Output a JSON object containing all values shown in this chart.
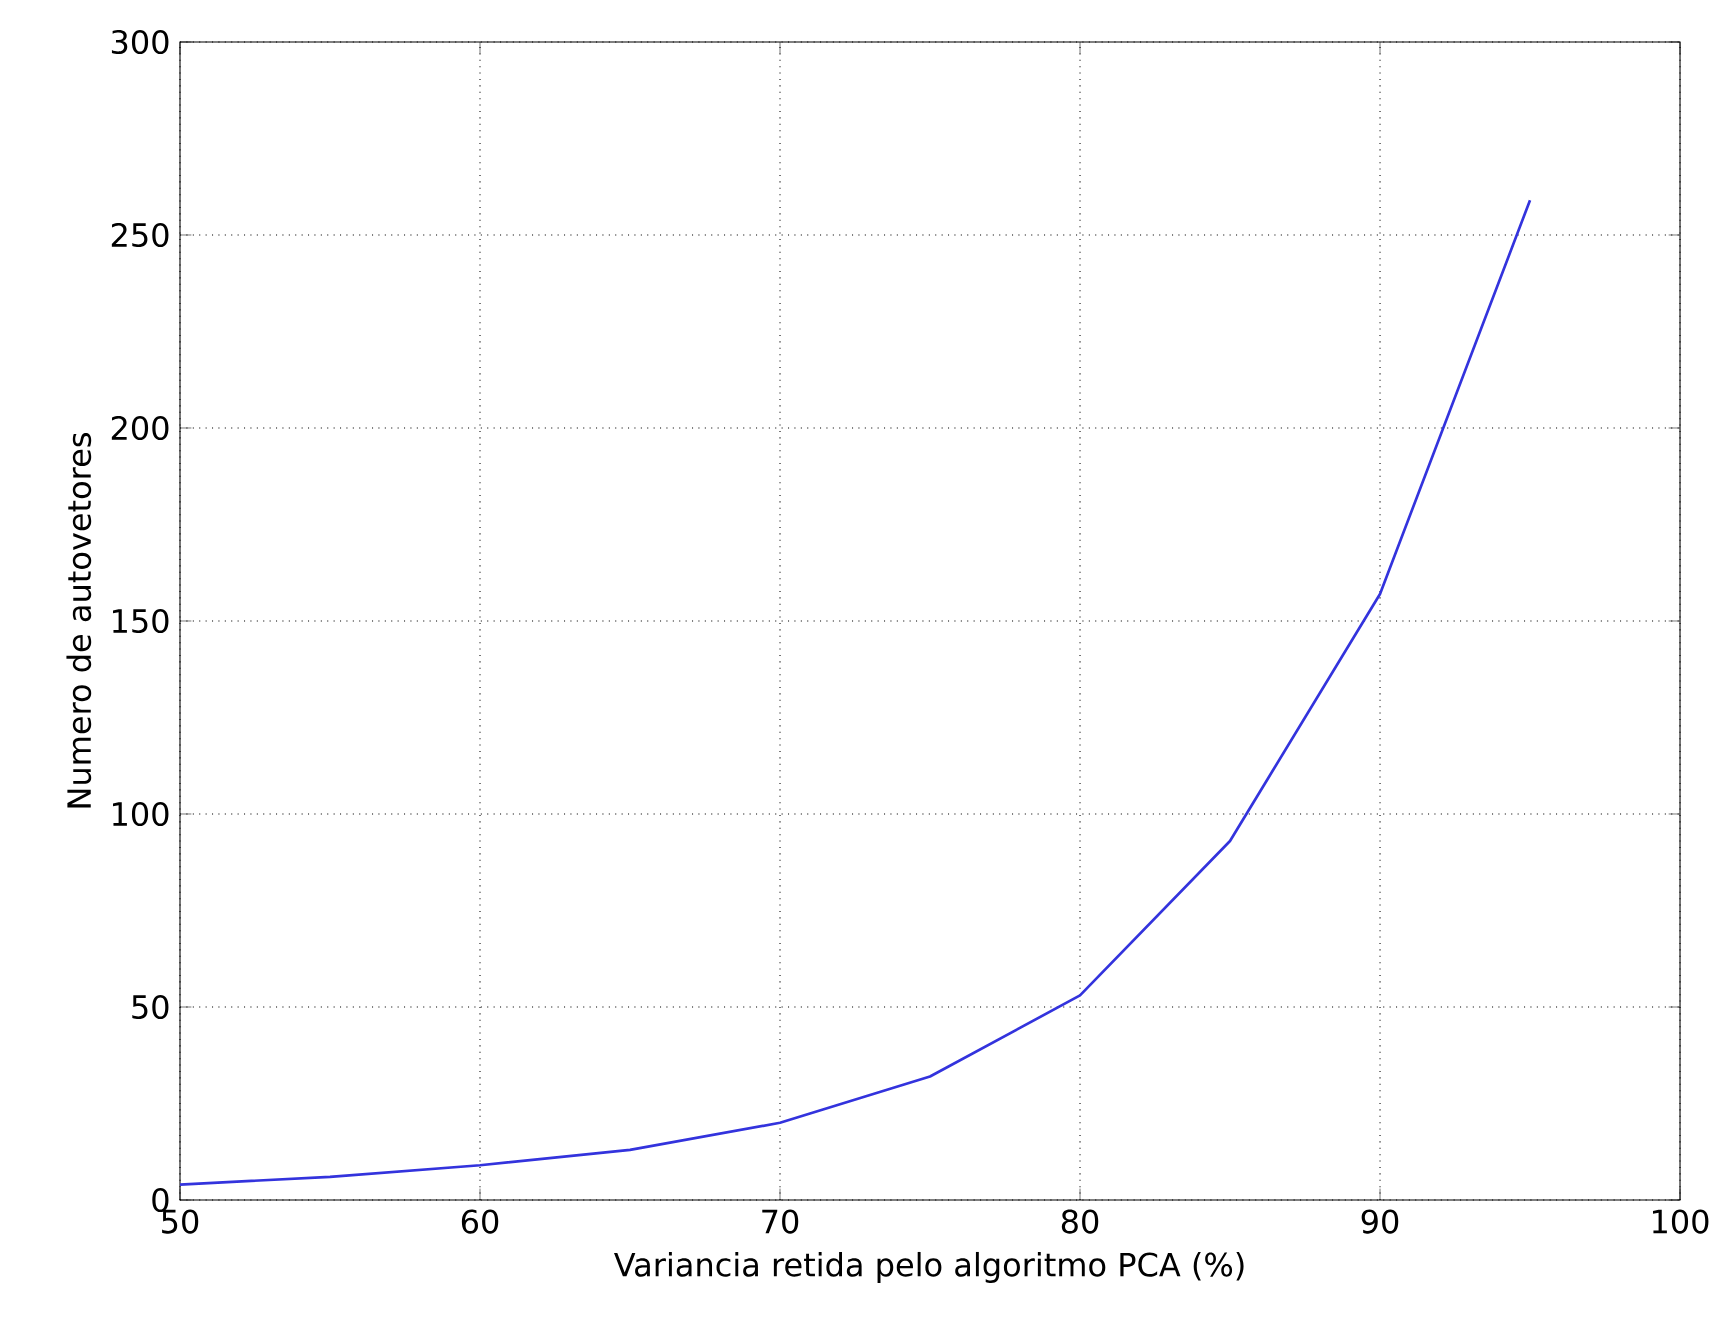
{
  "chart_data": {
    "type": "line",
    "xlabel": "Variancia retida pelo algoritmo PCA (%)",
    "ylabel": "Numero de autovetores",
    "x": [
      50,
      55,
      60,
      65,
      70,
      75,
      80,
      85,
      90,
      95
    ],
    "series": [
      {
        "color": "#3333dd",
        "values": [
          4,
          6,
          9,
          13,
          20,
          32,
          53,
          93,
          157,
          259
        ]
      }
    ],
    "xlim": [
      50,
      100
    ],
    "ylim": [
      0,
      300
    ],
    "xticks": [
      50,
      60,
      70,
      80,
      90,
      100
    ],
    "yticks": [
      0,
      50,
      100,
      150,
      200,
      250,
      300
    ],
    "grid": true,
    "marker": "none",
    "line_style": "solid"
  }
}
